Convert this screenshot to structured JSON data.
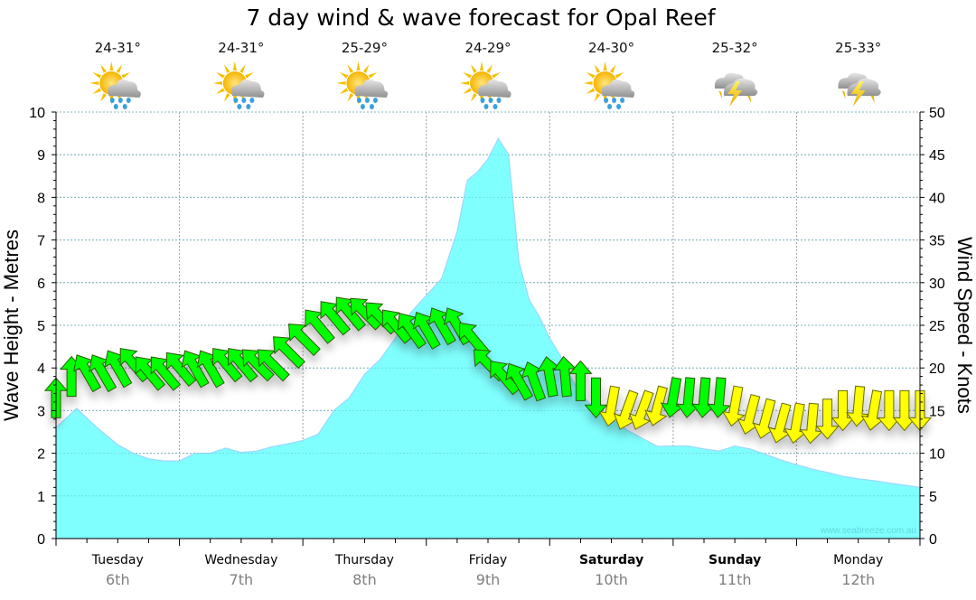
{
  "chart_data": {
    "type": "area",
    "title": "7 day wind & wave forecast for Opal Reef",
    "ylabel_left": "Wave Height - Metres",
    "ylabel_right": "Wind Speed - Knots",
    "ylim_left": [
      0,
      10
    ],
    "ylim_right": [
      0,
      50
    ],
    "yticks_left": [
      "0",
      "1",
      "2",
      "3",
      "4",
      "5",
      "6",
      "7",
      "8",
      "9",
      "10"
    ],
    "yticks_right": [
      "0",
      "5",
      "10",
      "15",
      "20",
      "25",
      "30",
      "35",
      "40",
      "45",
      "50"
    ],
    "grid": true,
    "x_unit": "hours from start",
    "xlim": [
      0,
      168
    ],
    "days": [
      {
        "name": "Tuesday",
        "date": "6th",
        "bold": false,
        "temp": "24-31°",
        "icon": "partly-sunny-rain-icon"
      },
      {
        "name": "Wednesday",
        "date": "7th",
        "bold": false,
        "temp": "24-31°",
        "icon": "partly-sunny-rain-icon"
      },
      {
        "name": "Thursday",
        "date": "8th",
        "bold": false,
        "temp": "25-29°",
        "icon": "partly-sunny-rain-icon"
      },
      {
        "name": "Friday",
        "date": "9th",
        "bold": false,
        "temp": "24-29°",
        "icon": "partly-sunny-rain-icon"
      },
      {
        "name": "Saturday",
        "date": "10th",
        "bold": true,
        "temp": "24-30°",
        "icon": "partly-sunny-rain-icon"
      },
      {
        "name": "Sunday",
        "date": "11th",
        "bold": true,
        "temp": "25-32°",
        "icon": "thunderstorm-icon"
      },
      {
        "name": "Monday",
        "date": "12th",
        "bold": false,
        "temp": "25-33°",
        "icon": "thunderstorm-icon"
      }
    ],
    "wave_series": {
      "name": "Wave Height (m)",
      "color": "#80ffff",
      "x": [
        0,
        4,
        8,
        12,
        15,
        18,
        21,
        24,
        27,
        30,
        33,
        36,
        39,
        42,
        45,
        48,
        51,
        54,
        57,
        60,
        63,
        66,
        69,
        72,
        75,
        78,
        80,
        82,
        84,
        86,
        88,
        90,
        92,
        94,
        96,
        98,
        100,
        102,
        105,
        108,
        111,
        114,
        117,
        120,
        123,
        126,
        129,
        132,
        135,
        138,
        141,
        144,
        147,
        150,
        153,
        156,
        159,
        162,
        165,
        168
      ],
      "y": [
        2.6,
        3.05,
        2.6,
        2.2,
        2.0,
        1.87,
        1.82,
        1.82,
        2.0,
        2.0,
        2.12,
        2.02,
        2.05,
        2.15,
        2.22,
        2.3,
        2.45,
        3.0,
        3.3,
        3.85,
        4.2,
        4.7,
        5.3,
        5.7,
        6.1,
        7.2,
        8.4,
        8.6,
        8.9,
        9.38,
        9.0,
        6.5,
        5.6,
        5.2,
        4.7,
        4.3,
        3.8,
        3.4,
        3.0,
        2.8,
        2.55,
        2.35,
        2.16,
        2.17,
        2.17,
        2.1,
        2.05,
        2.17,
        2.1,
        1.97,
        1.84,
        1.73,
        1.63,
        1.55,
        1.46,
        1.4,
        1.36,
        1.3,
        1.25,
        1.2
      ]
    },
    "wind_series": {
      "name": "Wind Speed (knots)",
      "colors": {
        "light": "#ffff00",
        "strong": "#00ff00"
      },
      "x": [
        0,
        3,
        6,
        9,
        12,
        15,
        18,
        21,
        24,
        27,
        30,
        33,
        36,
        39,
        42,
        45,
        48,
        51,
        54,
        57,
        60,
        63,
        66,
        69,
        72,
        75,
        78,
        81,
        84,
        87,
        90,
        93,
        96,
        99,
        102,
        105,
        108,
        111,
        114,
        117,
        120,
        123,
        126,
        129,
        132,
        135,
        138,
        141,
        144,
        147,
        150,
        153,
        156,
        159,
        162,
        165,
        168
      ],
      "y": [
        16.5,
        19,
        19.5,
        19.5,
        20,
        20.5,
        19.5,
        19.5,
        20,
        20,
        20,
        20.5,
        20.5,
        20.5,
        20.5,
        22,
        23.5,
        25,
        26,
        26.5,
        26.5,
        26,
        25,
        24.5,
        24.5,
        25,
        25,
        23.5,
        20.5,
        19,
        18.5,
        18.5,
        19,
        19,
        18.5,
        16.5,
        15.5,
        15,
        15,
        15.5,
        16.5,
        16.5,
        16.5,
        16.5,
        15.5,
        14.5,
        14,
        13.5,
        13.5,
        13.5,
        14,
        15,
        15.5,
        15,
        15,
        15,
        15
      ],
      "dir_deg": [
        180,
        180,
        150,
        150,
        150,
        140,
        140,
        140,
        140,
        150,
        150,
        140,
        140,
        135,
        135,
        135,
        135,
        140,
        140,
        140,
        135,
        135,
        140,
        145,
        150,
        150,
        150,
        140,
        135,
        140,
        150,
        160,
        170,
        175,
        180,
        0,
        10,
        20,
        20,
        15,
        10,
        5,
        5,
        5,
        10,
        15,
        15,
        15,
        10,
        5,
        0,
        0,
        5,
        10,
        0,
        0,
        0
      ],
      "strong_threshold_knots": 16
    },
    "watermark": "www.seabreeze.com.au"
  }
}
